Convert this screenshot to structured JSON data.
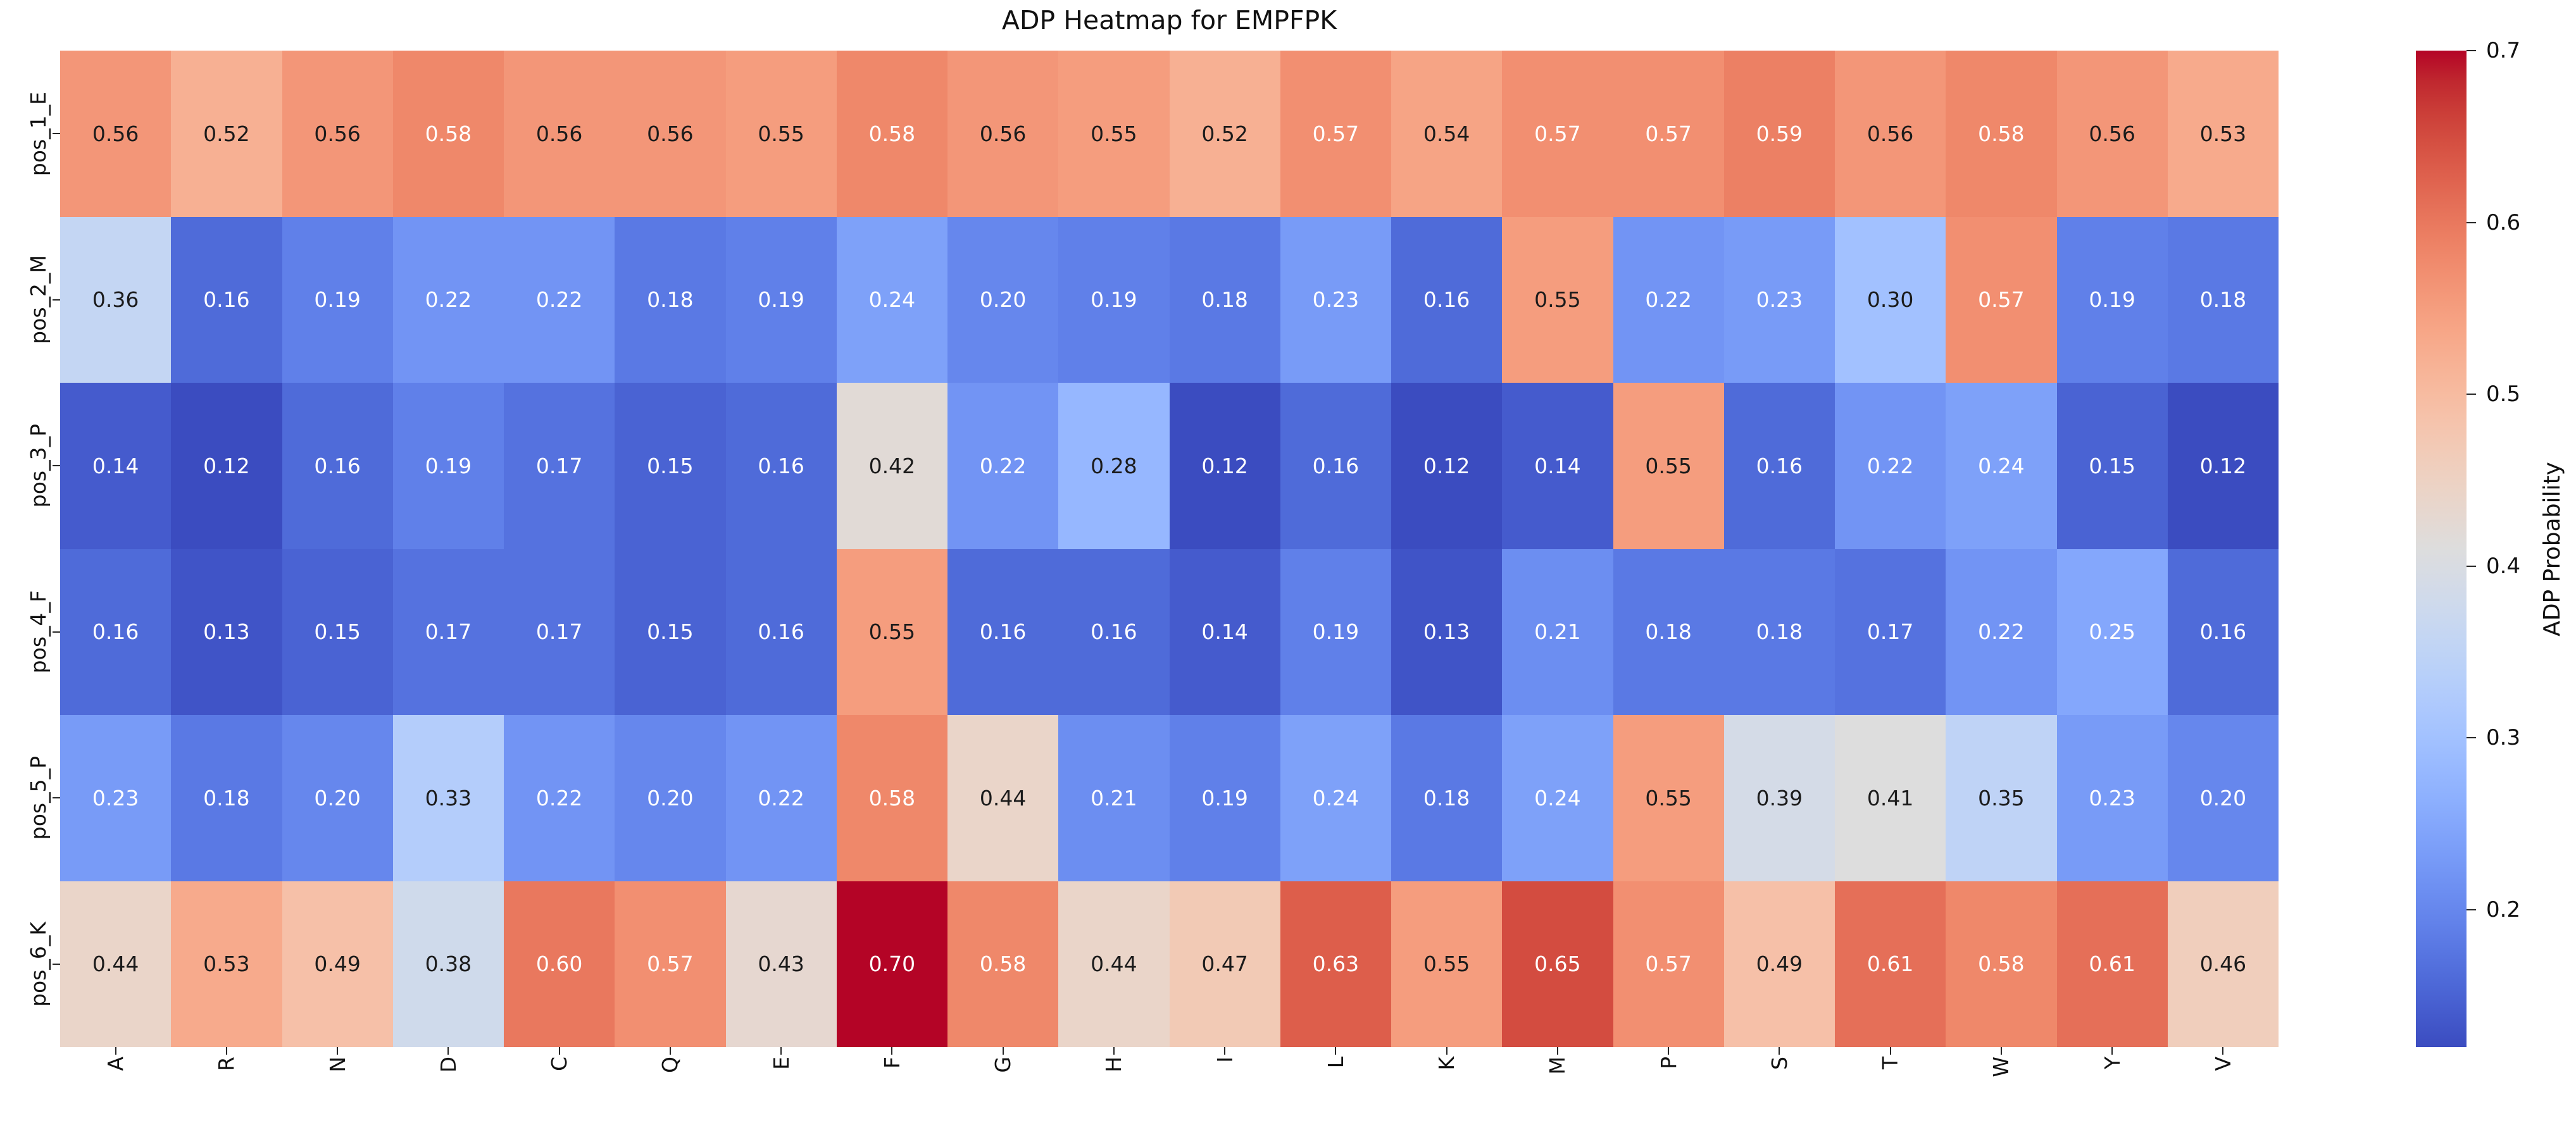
{
  "title": "ADP Heatmap for EMPFPK",
  "chart_data": {
    "type": "heatmap",
    "title": "ADP Heatmap for EMPFPK",
    "colormap": "coolwarm",
    "vmin": 0.12,
    "vmax": 0.7,
    "grid": false,
    "rows": [
      "pos_1_E",
      "pos_2_M",
      "pos_3_P",
      "pos_4_F",
      "pos_5_P",
      "pos_6_K"
    ],
    "columns": [
      "A",
      "R",
      "N",
      "D",
      "C",
      "Q",
      "E",
      "F",
      "G",
      "H",
      "I",
      "L",
      "K",
      "M",
      "P",
      "S",
      "T",
      "W",
      "Y",
      "V"
    ],
    "values": [
      [
        0.56,
        0.52,
        0.56,
        0.58,
        0.56,
        0.56,
        0.55,
        0.58,
        0.56,
        0.55,
        0.52,
        0.57,
        0.54,
        0.57,
        0.57,
        0.59,
        0.56,
        0.58,
        0.56,
        0.53
      ],
      [
        0.36,
        0.16,
        0.19,
        0.22,
        0.22,
        0.18,
        0.19,
        0.24,
        0.2,
        0.19,
        0.18,
        0.23,
        0.16,
        0.55,
        0.22,
        0.23,
        0.3,
        0.57,
        0.19,
        0.18
      ],
      [
        0.14,
        0.12,
        0.16,
        0.19,
        0.17,
        0.15,
        0.16,
        0.42,
        0.22,
        0.28,
        0.12,
        0.16,
        0.12,
        0.14,
        0.55,
        0.16,
        0.22,
        0.24,
        0.15,
        0.12
      ],
      [
        0.16,
        0.13,
        0.15,
        0.17,
        0.17,
        0.15,
        0.16,
        0.55,
        0.16,
        0.16,
        0.14,
        0.19,
        0.13,
        0.21,
        0.18,
        0.18,
        0.17,
        0.22,
        0.25,
        0.16
      ],
      [
        0.23,
        0.18,
        0.2,
        0.33,
        0.22,
        0.2,
        0.22,
        0.58,
        0.44,
        0.21,
        0.19,
        0.24,
        0.18,
        0.24,
        0.55,
        0.39,
        0.41,
        0.35,
        0.23,
        0.2
      ],
      [
        0.44,
        0.53,
        0.49,
        0.38,
        0.6,
        0.57,
        0.43,
        0.7,
        0.58,
        0.44,
        0.47,
        0.63,
        0.55,
        0.65,
        0.57,
        0.49,
        0.61,
        0.58,
        0.61,
        0.46
      ]
    ],
    "colorbar": {
      "label": "ADP Probability",
      "ticks": [
        0.2,
        0.3,
        0.4,
        0.5,
        0.6,
        0.7
      ],
      "position": "right"
    },
    "cell_text_colors": {
      "dark": "#1b1b1b",
      "light": "#ffffff"
    },
    "colormap_endpoints": {
      "low": "#3b4cc0",
      "mid": "#dddddd",
      "high": "#b40426"
    }
  }
}
